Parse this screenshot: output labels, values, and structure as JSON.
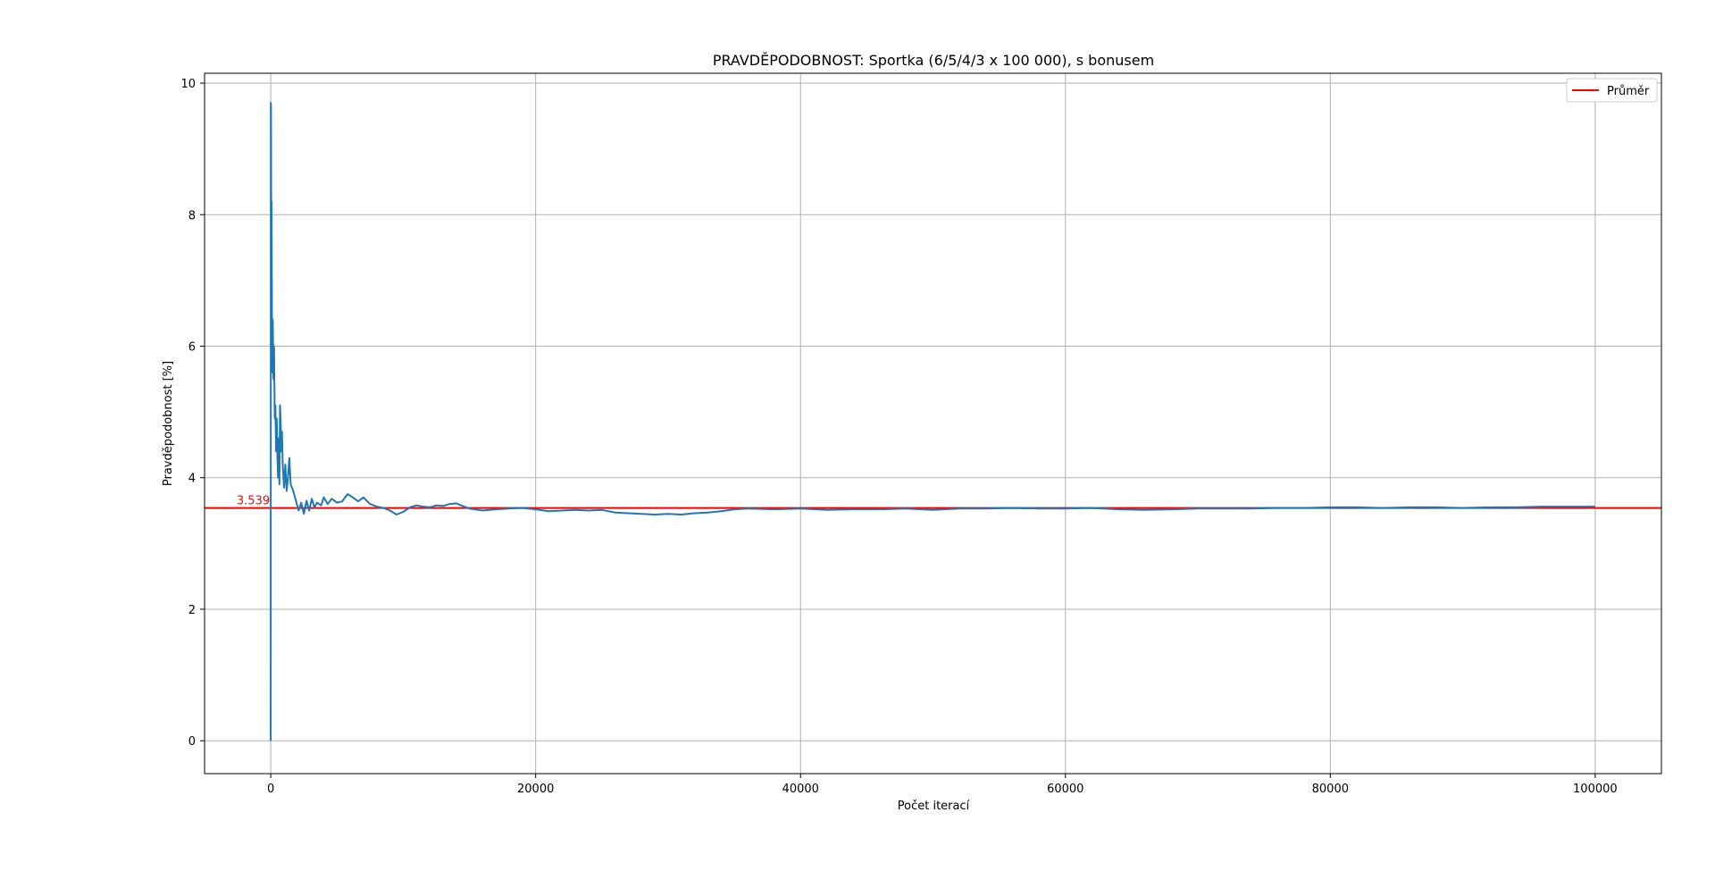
{
  "chart_data": {
    "type": "line",
    "title": "PRAVDĚPODOBNOST: Sportka (6/5/4/3 x 100 000), s bonusem",
    "xlabel": "Počet iterací",
    "ylabel": "Pravděpodobnost [%]",
    "xlim": [
      -5000,
      105000
    ],
    "ylim": [
      -0.5,
      10.15
    ],
    "xticks": [
      0,
      20000,
      40000,
      60000,
      80000,
      100000
    ],
    "xtick_labels": [
      "0",
      "20000",
      "40000",
      "60000",
      "80000",
      "100000"
    ],
    "yticks": [
      0,
      2,
      4,
      6,
      8,
      10
    ],
    "ytick_labels": [
      "0",
      "2",
      "4",
      "6",
      "8",
      "10"
    ],
    "grid": true,
    "legend_position": "top-right",
    "legend": [
      "Průměr"
    ],
    "series": [
      {
        "color": "#1f77b4",
        "points": [
          [
            0,
            0
          ],
          [
            5,
            9.7
          ],
          [
            20,
            9.6
          ],
          [
            40,
            7.0
          ],
          [
            60,
            8.2
          ],
          [
            90,
            6.3
          ],
          [
            120,
            5.6
          ],
          [
            150,
            6.4
          ],
          [
            200,
            5.5
          ],
          [
            250,
            6.0
          ],
          [
            300,
            4.9
          ],
          [
            350,
            5.1
          ],
          [
            400,
            4.4
          ],
          [
            450,
            4.9
          ],
          [
            500,
            4.3
          ],
          [
            550,
            4.0
          ],
          [
            600,
            4.6
          ],
          [
            650,
            3.9
          ],
          [
            700,
            5.1
          ],
          [
            750,
            4.8
          ],
          [
            800,
            4.4
          ],
          [
            850,
            4.7
          ],
          [
            900,
            4.2
          ],
          [
            1000,
            3.85
          ],
          [
            1100,
            4.2
          ],
          [
            1200,
            3.8
          ],
          [
            1300,
            4.0
          ],
          [
            1400,
            4.3
          ],
          [
            1500,
            3.9
          ],
          [
            1700,
            3.8
          ],
          [
            1900,
            3.65
          ],
          [
            2100,
            3.5
          ],
          [
            2300,
            3.62
          ],
          [
            2500,
            3.45
          ],
          [
            2700,
            3.65
          ],
          [
            2900,
            3.5
          ],
          [
            3100,
            3.68
          ],
          [
            3300,
            3.55
          ],
          [
            3500,
            3.62
          ],
          [
            3800,
            3.58
          ],
          [
            4000,
            3.7
          ],
          [
            4300,
            3.6
          ],
          [
            4600,
            3.68
          ],
          [
            5000,
            3.62
          ],
          [
            5400,
            3.64
          ],
          [
            5800,
            3.75
          ],
          [
            6200,
            3.7
          ],
          [
            6600,
            3.64
          ],
          [
            7000,
            3.7
          ],
          [
            7500,
            3.6
          ],
          [
            8000,
            3.56
          ],
          [
            8500,
            3.54
          ],
          [
            9000,
            3.5
          ],
          [
            9500,
            3.44
          ],
          [
            10000,
            3.48
          ],
          [
            10500,
            3.55
          ],
          [
            11000,
            3.58
          ],
          [
            11500,
            3.56
          ],
          [
            12000,
            3.55
          ],
          [
            12500,
            3.58
          ],
          [
            13000,
            3.57
          ],
          [
            13500,
            3.6
          ],
          [
            14000,
            3.61
          ],
          [
            14500,
            3.57
          ],
          [
            15000,
            3.53
          ],
          [
            16000,
            3.5
          ],
          [
            17000,
            3.52
          ],
          [
            18000,
            3.53
          ],
          [
            19000,
            3.54
          ],
          [
            20000,
            3.52
          ],
          [
            21000,
            3.49
          ],
          [
            22000,
            3.5
          ],
          [
            23000,
            3.51
          ],
          [
            24000,
            3.5
          ],
          [
            25000,
            3.51
          ],
          [
            26000,
            3.47
          ],
          [
            27000,
            3.46
          ],
          [
            28000,
            3.45
          ],
          [
            29000,
            3.44
          ],
          [
            30000,
            3.45
          ],
          [
            31000,
            3.44
          ],
          [
            32000,
            3.46
          ],
          [
            33000,
            3.47
          ],
          [
            34000,
            3.49
          ],
          [
            35000,
            3.52
          ],
          [
            36000,
            3.53
          ],
          [
            38000,
            3.52
          ],
          [
            40000,
            3.53
          ],
          [
            42000,
            3.51
          ],
          [
            44000,
            3.52
          ],
          [
            46000,
            3.52
          ],
          [
            48000,
            3.53
          ],
          [
            50000,
            3.51
          ],
          [
            52000,
            3.53
          ],
          [
            54000,
            3.53
          ],
          [
            56000,
            3.54
          ],
          [
            58000,
            3.53
          ],
          [
            60000,
            3.53
          ],
          [
            62000,
            3.54
          ],
          [
            64000,
            3.52
          ],
          [
            66000,
            3.51
          ],
          [
            68000,
            3.52
          ],
          [
            70000,
            3.53
          ],
          [
            72000,
            3.53
          ],
          [
            74000,
            3.53
          ],
          [
            76000,
            3.54
          ],
          [
            78000,
            3.54
          ],
          [
            80000,
            3.55
          ],
          [
            82000,
            3.55
          ],
          [
            84000,
            3.54
          ],
          [
            86000,
            3.55
          ],
          [
            88000,
            3.55
          ],
          [
            90000,
            3.54
          ],
          [
            92000,
            3.55
          ],
          [
            94000,
            3.55
          ],
          [
            96000,
            3.56
          ],
          [
            98000,
            3.56
          ],
          [
            100000,
            3.56
          ]
        ]
      }
    ],
    "reference_line": {
      "name": "Průměr",
      "y": 3.539,
      "label": "3.539",
      "color": "#ff0000"
    }
  }
}
